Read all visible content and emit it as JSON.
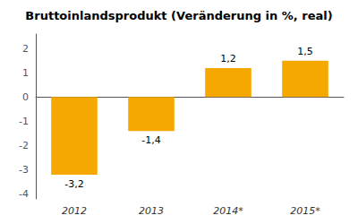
{
  "chart_data": {
    "type": "bar",
    "title": "Bruttoinlandsprodukt (Veränderung in %, real)",
    "categories": [
      "2012",
      "2013",
      "2014*",
      "2015*"
    ],
    "values": [
      -3.2,
      -1.4,
      1.2,
      1.5
    ],
    "value_labels": [
      "-3,2",
      "-1,4",
      "1,2",
      "1,5"
    ],
    "color": "#F5A800",
    "ylim": [
      -4.2,
      2.6
    ],
    "yticks": [
      -4,
      -3,
      -2,
      -1,
      0,
      1,
      2
    ],
    "grid": false,
    "data_labels": true
  }
}
